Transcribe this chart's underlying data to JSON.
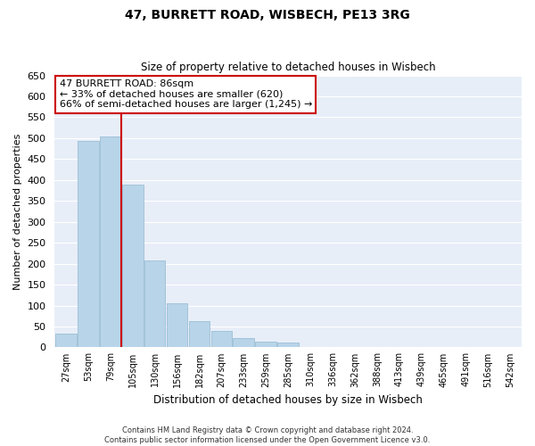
{
  "title": "47, BURRETT ROAD, WISBECH, PE13 3RG",
  "subtitle": "Size of property relative to detached houses in Wisbech",
  "xlabel": "Distribution of detached houses by size in Wisbech",
  "ylabel": "Number of detached properties",
  "bin_labels": [
    "27sqm",
    "53sqm",
    "79sqm",
    "105sqm",
    "130sqm",
    "156sqm",
    "182sqm",
    "207sqm",
    "233sqm",
    "259sqm",
    "285sqm",
    "310sqm",
    "336sqm",
    "362sqm",
    "388sqm",
    "413sqm",
    "439sqm",
    "465sqm",
    "491sqm",
    "516sqm",
    "542sqm"
  ],
  "bar_heights": [
    33,
    493,
    505,
    390,
    208,
    106,
    62,
    40,
    22,
    13,
    11,
    0,
    0,
    0,
    1,
    0,
    0,
    0,
    0,
    1,
    1
  ],
  "bar_color": "#b8d4e8",
  "bar_edge_color": "#90b8d0",
  "property_line_bin": 2,
  "property_line_color": "#cc0000",
  "annotation_line1": "47 BURRETT ROAD: 86sqm",
  "annotation_line2": "← 33% of detached houses are smaller (620)",
  "annotation_line3": "66% of semi-detached houses are larger (1,245) →",
  "annotation_box_color": "#ffffff",
  "annotation_box_edge": "#cc0000",
  "ylim": [
    0,
    650
  ],
  "yticks": [
    0,
    50,
    100,
    150,
    200,
    250,
    300,
    350,
    400,
    450,
    500,
    550,
    600,
    650
  ],
  "footer_line1": "Contains HM Land Registry data © Crown copyright and database right 2024.",
  "footer_line2": "Contains public sector information licensed under the Open Government Licence v3.0.",
  "bg_color": "#ffffff",
  "plot_bg_color": "#e8eef8",
  "grid_color": "#ffffff"
}
